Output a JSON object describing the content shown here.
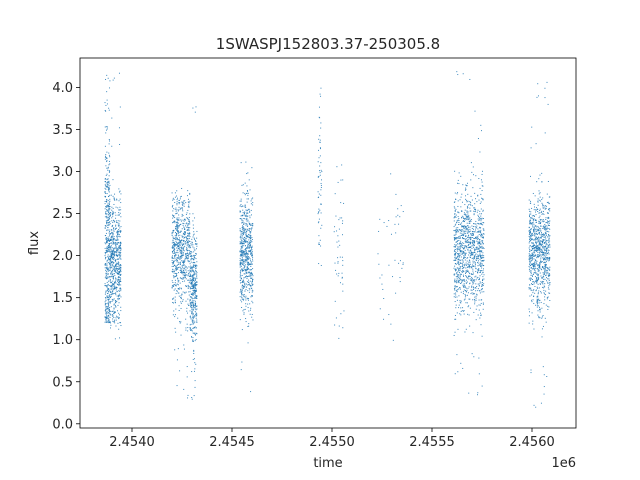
{
  "chart_data": {
    "type": "scatter",
    "title": "1SWASPJ152803.37-250305.8",
    "xlabel": "time",
    "ylabel": "flux",
    "x_offset_label": "1e6",
    "xlim": [
      2453740,
      2456220
    ],
    "ylim": [
      -0.05,
      4.35
    ],
    "x_ticks": [
      2454000,
      2454500,
      2455000,
      2455500,
      2456000
    ],
    "x_tick_labels": [
      "2.4540",
      "2.4545",
      "2.4550",
      "2.4555",
      "2.4560"
    ],
    "y_ticks": [
      0.0,
      0.5,
      1.0,
      1.5,
      2.0,
      2.5,
      3.0,
      3.5,
      4.0
    ],
    "y_tick_labels": [
      "0.0",
      "0.5",
      "1.0",
      "1.5",
      "2.0",
      "2.5",
      "3.0",
      "3.5",
      "4.0"
    ],
    "grid": false,
    "marker_color": "#1f77b4",
    "series": [
      {
        "clusters": [
          {
            "x_start": 2453865,
            "x_end": 2453890,
            "y_center": 2.1,
            "y_spread": 0.7,
            "y_min": 1.2,
            "y_max": 4.2,
            "n": 420
          },
          {
            "x_start": 2453890,
            "x_end": 2453945,
            "y_center": 1.9,
            "y_spread": 0.35,
            "y_min": 1.0,
            "y_max": 4.25,
            "n": 600
          },
          {
            "x_start": 2454200,
            "x_end": 2454290,
            "y_center": 2.05,
            "y_spread": 0.35,
            "y_min": 0.3,
            "y_max": 2.8,
            "n": 700
          },
          {
            "x_start": 2454290,
            "x_end": 2454325,
            "y_center": 1.6,
            "y_spread": 0.35,
            "y_min": 0.25,
            "y_max": 3.85,
            "n": 380
          },
          {
            "x_start": 2454540,
            "x_end": 2454605,
            "y_center": 2.0,
            "y_spread": 0.35,
            "y_min": 0.3,
            "y_max": 3.3,
            "n": 620
          },
          {
            "x_start": 2454930,
            "x_end": 2454950,
            "y_center": 2.9,
            "y_spread": 0.5,
            "y_min": 1.8,
            "y_max": 4.0,
            "n": 60
          },
          {
            "x_start": 2455010,
            "x_end": 2455060,
            "y_center": 2.0,
            "y_spread": 0.5,
            "y_min": 1.0,
            "y_max": 3.2,
            "n": 50
          },
          {
            "x_start": 2455230,
            "x_end": 2455370,
            "y_center": 2.0,
            "y_spread": 0.5,
            "y_min": 0.9,
            "y_max": 3.0,
            "n": 40
          },
          {
            "x_start": 2455610,
            "x_end": 2455760,
            "y_center": 2.05,
            "y_spread": 0.35,
            "y_min": 0.3,
            "y_max": 4.2,
            "n": 1100
          },
          {
            "x_start": 2455985,
            "x_end": 2456090,
            "y_center": 2.05,
            "y_spread": 0.33,
            "y_min": 0.15,
            "y_max": 4.15,
            "n": 900
          }
        ]
      }
    ]
  }
}
